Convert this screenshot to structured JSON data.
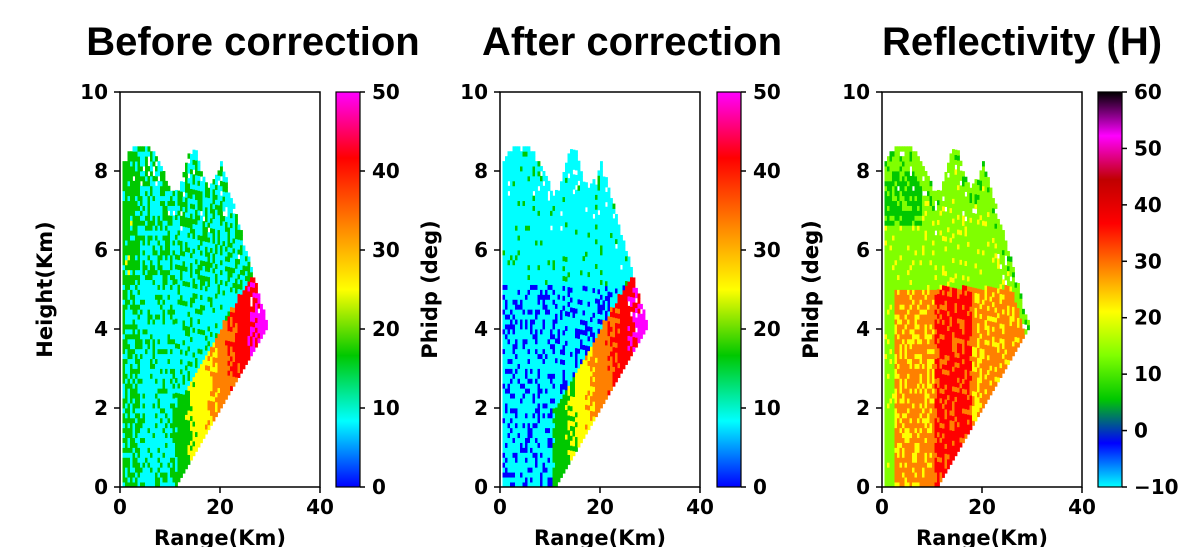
{
  "chart_data": [
    {
      "type": "heatmap",
      "title": "Before correction",
      "xlabel": "Range(Km)",
      "ylabel": "Height(Km)",
      "xlim": [
        0,
        40
      ],
      "ylim": [
        0,
        10
      ],
      "xticks": [
        "0",
        "20",
        "40"
      ],
      "yticks": [
        "0",
        "2",
        "4",
        "6",
        "8",
        "10"
      ],
      "variable": "phidp",
      "colorbar": {
        "label": "Phidp (deg)",
        "range": [
          0,
          50
        ],
        "ticks": [
          "0",
          "10",
          "20",
          "30",
          "40",
          "50"
        ],
        "colors": [
          "#0000ff",
          "#00ffff",
          "#00c800",
          "#ffff00",
          "#ff8000",
          "#ff0000",
          "#ff00ff"
        ]
      }
    },
    {
      "type": "heatmap",
      "title": "After correction",
      "xlabel": "Range(Km)",
      "ylabel": "",
      "xlim": [
        0,
        40
      ],
      "ylim": [
        0,
        10
      ],
      "xticks": [
        "0",
        "20",
        "40"
      ],
      "yticks": [
        "0",
        "2",
        "4",
        "6",
        "8",
        "10"
      ],
      "variable": "phidp",
      "colorbar": {
        "label": "Phidp (deg)",
        "range": [
          0,
          50
        ],
        "ticks": [
          "0",
          "10",
          "20",
          "30",
          "40",
          "50"
        ],
        "colors": [
          "#0000ff",
          "#00ffff",
          "#00c800",
          "#ffff00",
          "#ff8000",
          "#ff0000",
          "#ff00ff"
        ]
      }
    },
    {
      "type": "heatmap",
      "title": "Reflectivity (H)",
      "xlabel": "Range(Km)",
      "ylabel": "Phidp (deg)",
      "xlim": [
        0,
        40
      ],
      "ylim": [
        0,
        10
      ],
      "xticks": [
        "0",
        "20",
        "40"
      ],
      "yticks": [
        "0",
        "2",
        "4",
        "6",
        "8",
        "10"
      ],
      "variable": "reflectivity",
      "colorbar": {
        "label": "",
        "range": [
          -10,
          60
        ],
        "ticks": [
          "−10",
          "0",
          "10",
          "20",
          "30",
          "40",
          "50",
          "60"
        ],
        "colors": [
          "#00ffff",
          "#0000ff",
          "#00c800",
          "#80ff00",
          "#ffff00",
          "#ff8000",
          "#ff0000",
          "#c00000",
          "#ff00ff",
          "#000000"
        ]
      }
    }
  ]
}
